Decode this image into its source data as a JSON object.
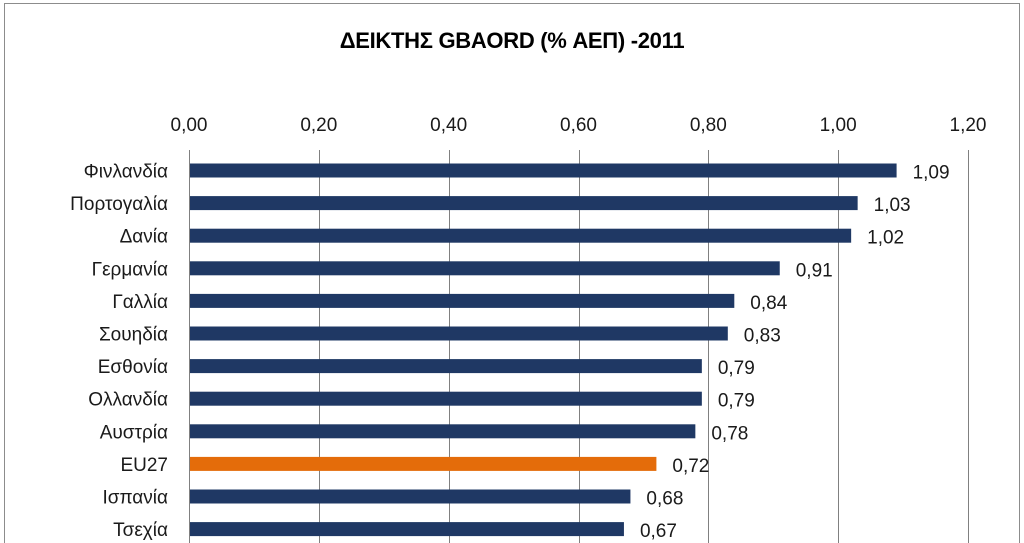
{
  "chart_data": {
    "type": "bar",
    "orientation": "horizontal",
    "title": "ΔΕΙΚΤΗΣ GBAORD (% ΑΕΠ) -2011",
    "xlim": [
      0,
      1.2
    ],
    "x_ticks": [
      "0,00",
      "0,20",
      "0,40",
      "0,60",
      "0,80",
      "1,00",
      "1,20"
    ],
    "x_tick_values": [
      0,
      0.2,
      0.4,
      0.6,
      0.8,
      1.0,
      1.2
    ],
    "x_axis_position": "top",
    "grid": true,
    "categories": [
      "Φινλανδία",
      "Πορτογαλία",
      "Δανία",
      "Γερμανία",
      "Γαλλία",
      "Σουηδία",
      "Εσθονία",
      "Ολλανδία",
      "Αυστρία",
      "EU27",
      "Ισπανία",
      "Τσεχία"
    ],
    "values": [
      1.09,
      1.03,
      1.02,
      0.91,
      0.84,
      0.83,
      0.79,
      0.79,
      0.78,
      0.72,
      0.68,
      0.67
    ],
    "value_labels": [
      "1,09",
      "1,03",
      "1,02",
      "0,91",
      "0,84",
      "0,83",
      "0,79",
      "0,79",
      "0,78",
      "0,72",
      "0,68",
      "0,67"
    ],
    "colors": {
      "default_bar": "#1f3864",
      "highlight_bar": "#e46c0a",
      "gridline": "#808080"
    },
    "highlight_category": "EU27"
  }
}
